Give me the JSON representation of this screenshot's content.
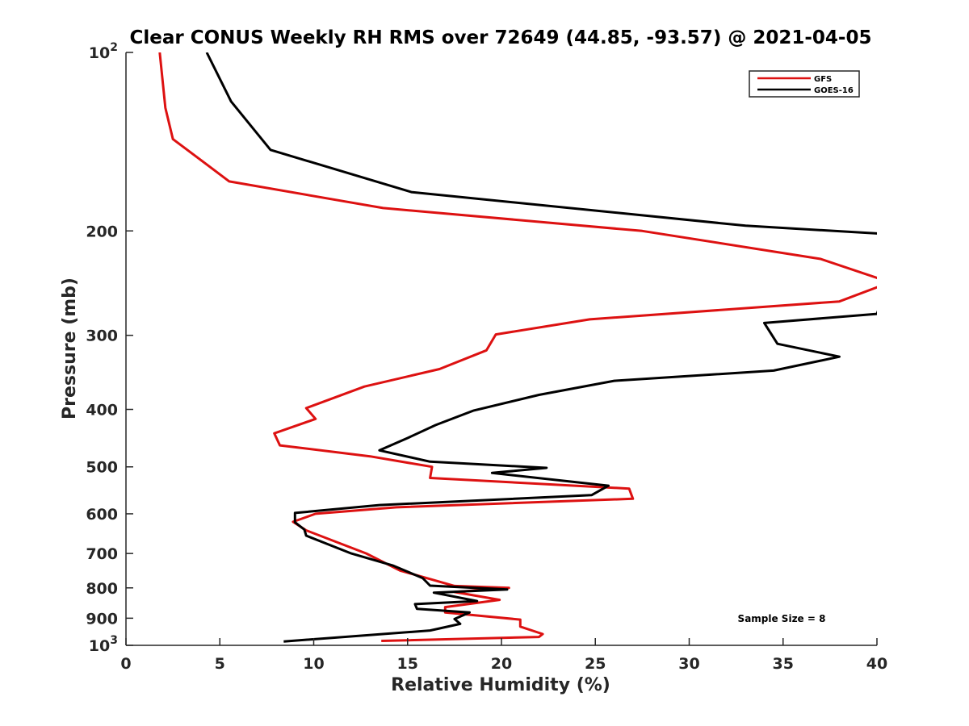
{
  "chart_data": {
    "type": "line",
    "title": "Clear CONUS Weekly RH RMS over 72649 (44.85, -93.57) @ 2021-04-05",
    "xlabel": "Relative Humidity (%)",
    "ylabel": "Pressure (mb)",
    "xlim": [
      0,
      40
    ],
    "ylim": [
      100,
      1000
    ],
    "y_scale": "log",
    "y_reversed": true,
    "grid": false,
    "legend_position": "top-right",
    "x_ticks": [
      "0",
      "5",
      "10",
      "15",
      "20",
      "25",
      "30",
      "35",
      "40"
    ],
    "y_ticks": [
      {
        "value": 100,
        "base": "10",
        "exp": "2"
      },
      {
        "value": 200,
        "label": "200"
      },
      {
        "value": 300,
        "label": "300"
      },
      {
        "value": 400,
        "label": "400"
      },
      {
        "value": 500,
        "label": "500"
      },
      {
        "value": 600,
        "label": "600"
      },
      {
        "value": 700,
        "label": "700"
      },
      {
        "value": 800,
        "label": "800"
      },
      {
        "value": 900,
        "label": "900"
      },
      {
        "value": 1000,
        "base": "10",
        "exp": "3"
      }
    ],
    "annotation": "Sample Size = 8",
    "series": [
      {
        "name": "GFS",
        "color": "#dd1111",
        "points": [
          [
            1.8,
            100
          ],
          [
            2.1,
            124
          ],
          [
            2.5,
            140
          ],
          [
            5.5,
            165
          ],
          [
            13.7,
            183
          ],
          [
            27.5,
            200
          ],
          [
            37.0,
            223
          ],
          [
            40.0,
            240
          ],
          [
            40.6,
            246
          ],
          [
            40.0,
            249
          ],
          [
            38.0,
            263
          ],
          [
            24.7,
            282
          ],
          [
            19.7,
            299
          ],
          [
            19.2,
            318
          ],
          [
            16.7,
            342
          ],
          [
            12.7,
            366
          ],
          [
            9.6,
            398
          ],
          [
            10.1,
            415
          ],
          [
            7.9,
            439
          ],
          [
            8.2,
            460
          ],
          [
            13.0,
            480
          ],
          [
            16.3,
            500
          ],
          [
            16.2,
            522
          ],
          [
            26.8,
            544
          ],
          [
            27.0,
            566
          ],
          [
            14.4,
            585
          ],
          [
            10.1,
            600
          ],
          [
            8.9,
            619
          ],
          [
            9.6,
            640
          ],
          [
            12.8,
            700
          ],
          [
            14.6,
            748
          ],
          [
            17.5,
            794
          ],
          [
            20.4,
            800
          ],
          [
            17.5,
            813
          ],
          [
            19.9,
            838
          ],
          [
            17.0,
            862
          ],
          [
            17.0,
            880
          ],
          [
            21.0,
            905
          ],
          [
            21.0,
            930
          ],
          [
            22.2,
            957
          ],
          [
            22.0,
            968
          ],
          [
            13.6,
            983
          ]
        ]
      },
      {
        "name": "GOES-16",
        "color": "#000000",
        "points": [
          [
            4.3,
            100
          ],
          [
            5.6,
            121
          ],
          [
            7.7,
            146
          ],
          [
            15.2,
            172
          ],
          [
            33.0,
            196
          ],
          [
            40.0,
            202
          ],
          [
            41.5,
            203
          ],
          [
            40.0,
            276
          ],
          [
            34.0,
            286
          ],
          [
            34.7,
            310
          ],
          [
            38.0,
            326
          ],
          [
            34.5,
            344
          ],
          [
            26.0,
            358
          ],
          [
            22.0,
            378
          ],
          [
            18.5,
            402
          ],
          [
            16.5,
            425
          ],
          [
            15.0,
            447
          ],
          [
            13.5,
            469
          ],
          [
            16.2,
            490
          ],
          [
            22.4,
            502
          ],
          [
            19.5,
            512
          ],
          [
            25.7,
            538
          ],
          [
            24.8,
            558
          ],
          [
            13.5,
            580
          ],
          [
            9.0,
            598
          ],
          [
            9.0,
            620
          ],
          [
            9.5,
            638
          ],
          [
            9.6,
            653
          ],
          [
            12.0,
            700
          ],
          [
            14.2,
            733
          ],
          [
            15.8,
            770
          ],
          [
            16.2,
            793
          ],
          [
            20.3,
            805
          ],
          [
            16.4,
            815
          ],
          [
            18.7,
            842
          ],
          [
            15.4,
            852
          ],
          [
            15.5,
            868
          ],
          [
            18.3,
            880
          ],
          [
            17.5,
            903
          ],
          [
            17.8,
            920
          ],
          [
            16.2,
            944
          ],
          [
            8.4,
            985
          ]
        ]
      }
    ]
  }
}
